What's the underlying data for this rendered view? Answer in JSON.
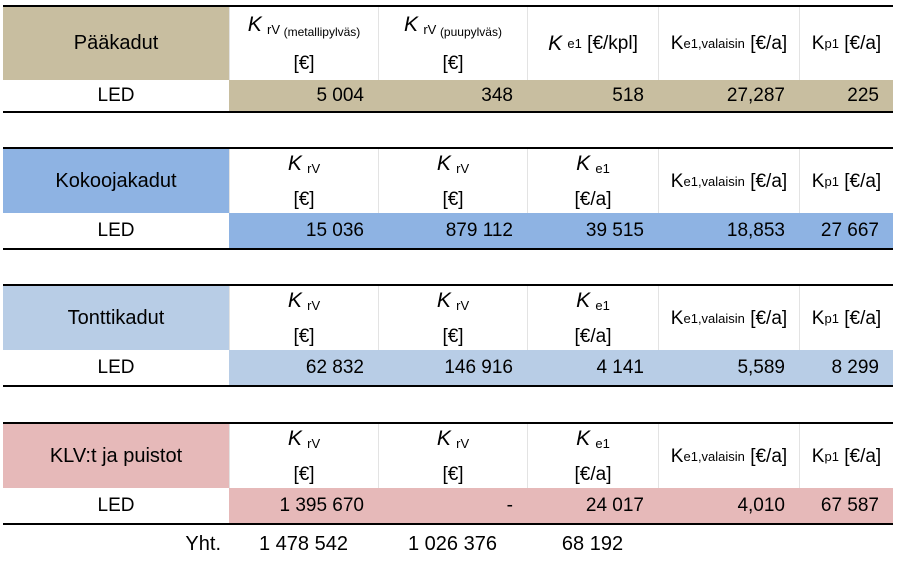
{
  "colors": {
    "paakadut_bg": "#c8bea0",
    "kokoojakadut_bg": "#8eb3e3",
    "tonttikadut_bg": "#b8cde6",
    "klv_bg": "#e6b9b9"
  },
  "tables": [
    {
      "name": "Pääkadut",
      "headers": [
        {
          "sym": "K",
          "sub": "rV",
          "sub_note": "(metallipylväs)",
          "unit": "[€]"
        },
        {
          "sym": "K",
          "sub": "rV",
          "sub_note": "(puupylväs)",
          "unit": "[€]"
        },
        {
          "sym": "K",
          "sub": "e1",
          "unit": "[€/kpl]"
        },
        {
          "sym": "K",
          "sub": "e1,valaisin",
          "unit": "[€/a]"
        },
        {
          "sym": "K",
          "sub": "p1",
          "unit": "[€/a]"
        }
      ],
      "row_label": "LED",
      "values": [
        "5 004",
        "348",
        "518",
        "27,287",
        "225"
      ]
    },
    {
      "name": "Kokoojakadut",
      "headers": [
        {
          "sym": "K",
          "sub": "rV",
          "unit": "[€]"
        },
        {
          "sym": "K",
          "sub": "rV",
          "unit": "[€]"
        },
        {
          "sym": "K",
          "sub": "e1",
          "unit": "[€/a]"
        },
        {
          "sym": "K",
          "sub": "e1,valaisin",
          "unit": "[€/a]"
        },
        {
          "sym": "K",
          "sub": "p1",
          "unit": "[€/a]"
        }
      ],
      "row_label": "LED",
      "values": [
        "15 036",
        "879 112",
        "39 515",
        "18,853",
        "27 667"
      ]
    },
    {
      "name": "Tonttikadut",
      "headers": [
        {
          "sym": "K",
          "sub": "rV",
          "unit": "[€]"
        },
        {
          "sym": "K",
          "sub": "rV",
          "unit": "[€]"
        },
        {
          "sym": "K",
          "sub": "e1",
          "unit": "[€/a]"
        },
        {
          "sym": "K",
          "sub": "e1,valaisin",
          "unit": "[€/a]"
        },
        {
          "sym": "K",
          "sub": "p1",
          "unit": "[€/a]"
        }
      ],
      "row_label": "LED",
      "values": [
        "62 832",
        "146 916",
        "4 141",
        "5,589",
        "8 299"
      ]
    },
    {
      "name": "KLV:t ja puistot",
      "headers": [
        {
          "sym": "K",
          "sub": "rV",
          "unit": "[€]"
        },
        {
          "sym": "K",
          "sub": "rV",
          "unit": "[€]"
        },
        {
          "sym": "K",
          "sub": "e1",
          "unit": "[€/a]"
        },
        {
          "sym": "K",
          "sub": "e1,valaisin",
          "unit": "[€/a]"
        },
        {
          "sym": "K",
          "sub": "p1",
          "unit": "[€/a]"
        }
      ],
      "row_label": "LED",
      "values": [
        "1 395 670",
        "-",
        "24 017",
        "4,010",
        "67 587"
      ]
    }
  ],
  "totals": {
    "label": "Yht.",
    "values": [
      "1 478 542",
      "1 026 376",
      "68 192"
    ]
  }
}
